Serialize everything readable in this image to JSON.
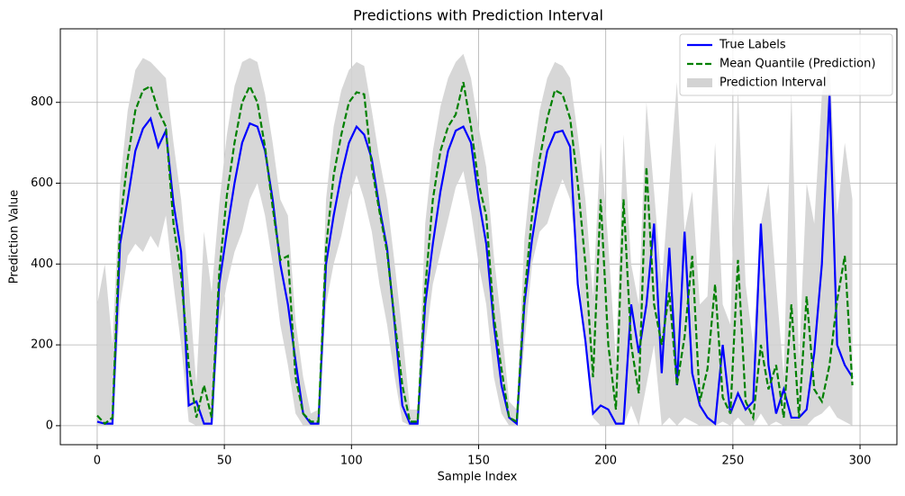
{
  "chart_data": {
    "type": "line",
    "title": "Predictions with Prediction Interval",
    "xlabel": "Sample Index",
    "ylabel": "Prediction Value",
    "x": [
      0,
      3,
      6,
      9,
      12,
      15,
      18,
      21,
      24,
      27,
      30,
      33,
      36,
      39,
      42,
      45,
      48,
      51,
      54,
      57,
      60,
      63,
      66,
      69,
      72,
      75,
      78,
      81,
      84,
      87,
      90,
      93,
      96,
      99,
      102,
      105,
      108,
      111,
      114,
      117,
      120,
      123,
      126,
      129,
      132,
      135,
      138,
      141,
      144,
      147,
      150,
      153,
      156,
      159,
      162,
      165,
      168,
      171,
      174,
      177,
      180,
      183,
      186,
      189,
      192,
      195,
      198,
      201,
      204,
      207,
      210,
      213,
      216,
      219,
      222,
      225,
      228,
      231,
      234,
      237,
      240,
      243,
      246,
      249,
      252,
      255,
      258,
      261,
      264,
      267,
      270,
      273,
      276,
      279,
      282,
      285,
      288,
      291,
      294,
      297
    ],
    "series": [
      {
        "name": "True Labels",
        "color": "#0000ff",
        "values": [
          10,
          5,
          5,
          450,
          560,
          680,
          735,
          760,
          690,
          730,
          550,
          430,
          50,
          60,
          5,
          5,
          350,
          480,
          600,
          700,
          748,
          740,
          680,
          560,
          400,
          300,
          160,
          30,
          5,
          5,
          400,
          520,
          620,
          700,
          740,
          720,
          660,
          540,
          440,
          250,
          50,
          5,
          5,
          300,
          450,
          580,
          680,
          730,
          740,
          700,
          560,
          450,
          250,
          100,
          20,
          5,
          300,
          460,
          580,
          680,
          725,
          730,
          690,
          350,
          210,
          30,
          50,
          40,
          5,
          5,
          300,
          180,
          300,
          500,
          130,
          440,
          100,
          480,
          130,
          50,
          20,
          5,
          200,
          30,
          80,
          40,
          60,
          500,
          150,
          30,
          90,
          20,
          20,
          40,
          180,
          400,
          820,
          200,
          150,
          120
        ]
      },
      {
        "name": "Mean Quantile (Prediction)",
        "color": "#008000",
        "dashed": true,
        "values": [
          25,
          5,
          20,
          500,
          660,
          780,
          830,
          840,
          780,
          740,
          500,
          370,
          150,
          20,
          100,
          20,
          380,
          570,
          700,
          800,
          840,
          800,
          690,
          540,
          410,
          420,
          120,
          30,
          10,
          10,
          440,
          620,
          720,
          800,
          825,
          820,
          640,
          530,
          430,
          260,
          100,
          10,
          10,
          340,
          560,
          680,
          740,
          770,
          850,
          740,
          600,
          520,
          270,
          140,
          20,
          10,
          320,
          520,
          660,
          760,
          830,
          820,
          760,
          600,
          400,
          120,
          560,
          200,
          40,
          560,
          200,
          80,
          640,
          300,
          200,
          330,
          100,
          220,
          420,
          60,
          140,
          350,
          70,
          30,
          410,
          60,
          20,
          200,
          90,
          150,
          20,
          300,
          20,
          320,
          90,
          60,
          150,
          310,
          420,
          100
        ]
      },
      {
        "name": "Prediction Interval",
        "color": "#d3d3d3",
        "lower": [
          0,
          0,
          0,
          300,
          420,
          450,
          430,
          470,
          440,
          520,
          350,
          200,
          10,
          0,
          0,
          0,
          250,
          350,
          430,
          480,
          560,
          600,
          520,
          400,
          250,
          150,
          30,
          0,
          0,
          0,
          300,
          400,
          470,
          560,
          620,
          560,
          480,
          350,
          250,
          120,
          10,
          0,
          0,
          200,
          350,
          430,
          510,
          590,
          630,
          530,
          400,
          300,
          120,
          30,
          0,
          0,
          200,
          400,
          480,
          500,
          560,
          610,
          560,
          400,
          200,
          20,
          0,
          0,
          0,
          0,
          50,
          0,
          100,
          200,
          0,
          20,
          0,
          20,
          10,
          0,
          0,
          0,
          10,
          0,
          20,
          0,
          0,
          30,
          0,
          10,
          0,
          0,
          0,
          0,
          20,
          30,
          50,
          20,
          10,
          0
        ],
        "upper": [
          300,
          400,
          200,
          600,
          780,
          880,
          910,
          900,
          880,
          860,
          700,
          560,
          350,
          100,
          480,
          330,
          550,
          720,
          840,
          900,
          910,
          900,
          820,
          700,
          560,
          520,
          260,
          120,
          30,
          40,
          560,
          740,
          830,
          880,
          900,
          890,
          780,
          660,
          560,
          400,
          230,
          40,
          40,
          500,
          680,
          790,
          860,
          900,
          920,
          860,
          740,
          640,
          420,
          250,
          60,
          40,
          460,
          650,
          780,
          860,
          900,
          890,
          860,
          720,
          560,
          320,
          700,
          450,
          160,
          720,
          400,
          300,
          800,
          580,
          350,
          600,
          850,
          480,
          580,
          300,
          320,
          700,
          300,
          250,
          840,
          350,
          200,
          500,
          600,
          350,
          120,
          830,
          160,
          600,
          500,
          820,
          900,
          520,
          700,
          560
        ]
      }
    ],
    "xlim": [
      -14.5,
      314.5
    ],
    "ylim": [
      -47,
      982
    ],
    "xticks": [
      0,
      50,
      100,
      150,
      200,
      250,
      300
    ],
    "yticks": [
      0,
      200,
      400,
      600,
      800
    ],
    "grid": true,
    "legend": "upper right"
  }
}
